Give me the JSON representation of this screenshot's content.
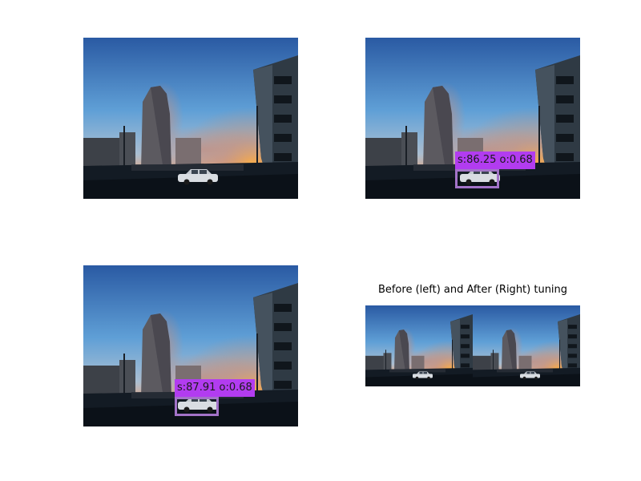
{
  "figure": {
    "montage_title": "Before (left) and After (Right) tuning"
  },
  "detections": [
    {
      "label": "s:86.25 o:0.68",
      "color": "#b23cf0"
    },
    {
      "label": "s:87.91 o:0.68",
      "color": "#b23cf0"
    }
  ],
  "colors": {
    "sky_top": "#2a5fa8",
    "sky_mid": "#5f9fd6",
    "sky_horizon": "#c7b8b0",
    "ground": "#101820",
    "box_border": "#a373c8",
    "label_bg": "#b23cf0"
  },
  "scene": {
    "description_icons": [
      "city-street-photo",
      "car-icon"
    ]
  }
}
